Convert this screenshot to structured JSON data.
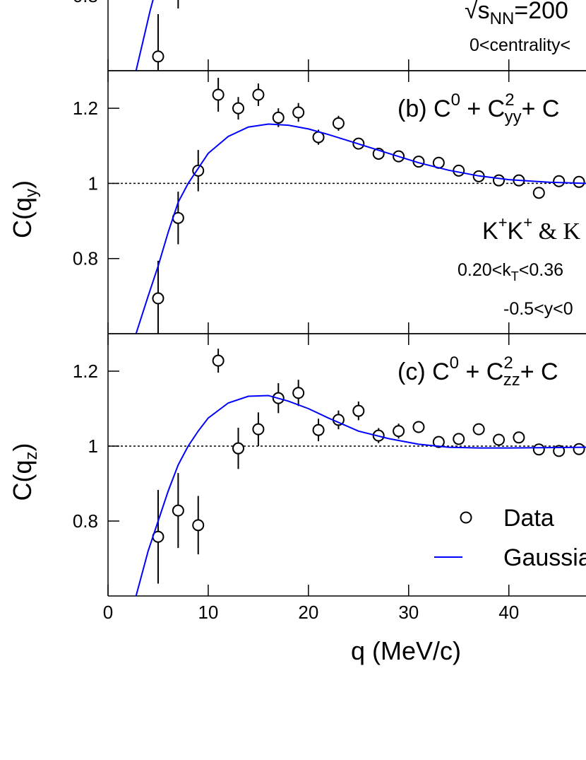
{
  "chart_data": [
    {
      "type": "scatter",
      "xlim": [
        0,
        47.7
      ],
      "ylim": [
        0.6,
        1.3
      ],
      "xticks": [
        0,
        10,
        20,
        30,
        40
      ],
      "yticks": [
        0.8
      ],
      "reference_line": 1,
      "annotations": [
        [
          "√s",
          "NN",
          "=200"
        ],
        [
          "0<centrality<"
        ]
      ],
      "series": [
        {
          "name": "Data",
          "color": "#000000",
          "x": [
            5,
            7
          ],
          "values": [
            0.638,
            0.84
          ],
          "errors": [
            0.113,
            0.074
          ]
        },
        {
          "name": "Gaussian",
          "color": "#0000ff",
          "x": [
            2.8,
            3.5,
            4.2,
            4.6
          ],
          "values": [
            0.6,
            0.68,
            0.76,
            0.8
          ]
        }
      ]
    },
    {
      "type": "scatter",
      "xlim": [
        0,
        47.7
      ],
      "ylim": [
        0.6,
        1.3
      ],
      "xticks": [
        0,
        10,
        20,
        30,
        40
      ],
      "yticks": [
        0.8,
        1,
        1.2
      ],
      "reference_line": 1,
      "ylabel": [
        "C(q",
        "y",
        ")"
      ],
      "annotations": [
        [
          "(b) C",
          "0",
          " + C",
          "2",
          "yy",
          "+ C"
        ],
        [
          "K",
          "+",
          "K",
          "+",
          " & K"
        ],
        [
          "0.20<k",
          "T",
          "<0.36"
        ],
        [
          "-0.5<y<0"
        ]
      ],
      "series": [
        {
          "name": "Data",
          "color": "#000000",
          "x": [
            5,
            7,
            9,
            11,
            13,
            15,
            17,
            19,
            21,
            23,
            25,
            27,
            29,
            31,
            33,
            35,
            37,
            39,
            41,
            43,
            45,
            47
          ],
          "values": [
            0.694,
            0.908,
            1.034,
            1.236,
            1.2,
            1.236,
            1.175,
            1.189,
            1.123,
            1.16,
            1.106,
            1.079,
            1.072,
            1.058,
            1.055,
            1.034,
            1.019,
            1.008,
            1.008,
            0.975,
            1.006,
            1.004
          ],
          "errors": [
            0.1,
            0.07,
            0.055,
            0.045,
            0.03,
            0.03,
            0.025,
            0.025,
            0.02,
            0.02,
            0.015,
            0.015,
            0.01,
            0.01,
            0.01,
            0.01,
            0.01,
            0.008,
            0.008,
            0.008,
            0.008,
            0.008
          ]
        },
        {
          "name": "Gaussian",
          "color": "#0000ff",
          "x": [
            2.8,
            4,
            5,
            6,
            7,
            8,
            9,
            10,
            12,
            14,
            16,
            18,
            20,
            22,
            25,
            28,
            31,
            34,
            37,
            40,
            44,
            47.7
          ],
          "values": [
            0.6,
            0.7,
            0.78,
            0.87,
            0.95,
            1.0,
            1.04,
            1.08,
            1.125,
            1.15,
            1.158,
            1.155,
            1.145,
            1.13,
            1.105,
            1.08,
            1.055,
            1.035,
            1.02,
            1.01,
            1.003,
            1.0
          ]
        }
      ]
    },
    {
      "type": "scatter",
      "xlim": [
        0,
        47.7
      ],
      "ylim": [
        0.6,
        1.3
      ],
      "xticks": [
        0,
        10,
        20,
        30,
        40
      ],
      "yticks": [
        0.8,
        1,
        1.2
      ],
      "xtick_labels": true,
      "reference_line": 1,
      "xlabel": "q (MeV/c)",
      "ylabel": [
        "C(q",
        "z",
        ")"
      ],
      "legend": "right",
      "annotations": [
        [
          "(c) C",
          "0",
          " + C",
          "2",
          "zz",
          "+ C"
        ]
      ],
      "series": [
        {
          "name": "Data",
          "color": "#000000",
          "x": [
            5,
            7,
            9,
            11,
            13,
            15,
            17,
            19,
            21,
            23,
            25,
            27,
            29,
            31,
            33,
            35,
            37,
            39,
            41,
            43,
            45,
            47
          ],
          "values": [
            0.758,
            0.828,
            0.789,
            1.228,
            0.994,
            1.045,
            1.128,
            1.142,
            1.043,
            1.07,
            1.094,
            1.028,
            1.04,
            1.051,
            1.011,
            1.019,
            1.045,
            1.017,
            1.023,
            0.991,
            0.987,
            0.992
          ],
          "errors": [
            0.125,
            0.1,
            0.078,
            0.032,
            0.055,
            0.045,
            0.04,
            0.035,
            0.03,
            0.025,
            0.025,
            0.02,
            0.02,
            0.015,
            0.015,
            0.01,
            0.01,
            0.01,
            0.01,
            0.008,
            0.008,
            0.008
          ]
        },
        {
          "name": "Gaussian",
          "color": "#0000ff",
          "x": [
            2.8,
            4,
            5,
            6,
            7,
            8,
            9,
            10,
            12,
            14,
            16,
            18,
            20,
            22,
            25,
            28,
            31,
            34,
            37,
            40,
            44,
            47.7
          ],
          "values": [
            0.6,
            0.72,
            0.8,
            0.88,
            0.95,
            1.0,
            1.04,
            1.075,
            1.115,
            1.133,
            1.135,
            1.12,
            1.1,
            1.075,
            1.04,
            1.02,
            1.005,
            0.997,
            0.995,
            0.995,
            0.996,
            0.997
          ]
        }
      ]
    }
  ]
}
